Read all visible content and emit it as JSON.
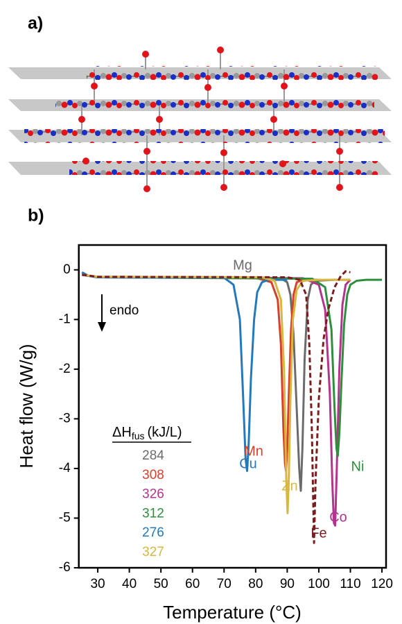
{
  "panel_a_label": "a)",
  "chart_data": {
    "type": "line",
    "panel_label": "b)",
    "xlabel": "Temperature (°C)",
    "ylabel": "Heat flow (W/g)",
    "xlim": [
      24,
      121.3
    ],
    "ylim": [
      -6,
      0.5
    ],
    "xticks": [
      30,
      40,
      50,
      60,
      70,
      80,
      90,
      100,
      110,
      120
    ],
    "yticks": [
      0,
      -1,
      -2,
      -3,
      -4,
      -5,
      -6
    ],
    "annotation": "endo",
    "table_header": {
      "symbol": "ΔH",
      "subscript": "fus",
      "unit": "(kJ/L)"
    },
    "series": [
      {
        "name": "Mg",
        "color": "#6b6b6b",
        "dashed": false,
        "delta_h_fus": 284,
        "x": [
          25,
          27,
          30,
          80,
          88,
          90,
          91,
          92,
          93,
          93.8,
          94.3,
          94.8,
          95.5,
          96.5,
          97.5,
          99,
          105,
          110
        ],
        "values": [
          -0.05,
          -0.12,
          -0.14,
          -0.15,
          -0.17,
          -0.25,
          -0.5,
          -1.3,
          -2.8,
          -4.0,
          -4.45,
          -3.6,
          -1.8,
          -0.6,
          -0.3,
          -0.22,
          -0.2,
          -0.2
        ]
      },
      {
        "name": "Mn",
        "color": "#d8402a",
        "dashed": false,
        "delta_h_fus": 308,
        "x": [
          25,
          30,
          80,
          85,
          87,
          88,
          88.8,
          89.3,
          89.6,
          90,
          90.5,
          91.2,
          92,
          93,
          95,
          100
        ],
        "values": [
          -0.1,
          -0.15,
          -0.16,
          -0.25,
          -0.6,
          -1.5,
          -3.2,
          -3.9,
          -4.05,
          -3.6,
          -2.5,
          -1.2,
          -0.5,
          -0.25,
          -0.2,
          -0.2
        ]
      },
      {
        "name": "Co",
        "color": "#b2348f",
        "dashed": false,
        "delta_h_fus": 326,
        "x": [
          25,
          30,
          95,
          100,
          102,
          103.5,
          104.3,
          104.8,
          105.2,
          105.7,
          106.5,
          107.5,
          108.5,
          110
        ],
        "values": [
          -0.1,
          -0.15,
          -0.17,
          -0.3,
          -0.8,
          -2.5,
          -4.3,
          -5.1,
          -5.15,
          -4.0,
          -2.0,
          -0.7,
          -0.3,
          -0.2
        ]
      },
      {
        "name": "Ni",
        "color": "#2f8e3c",
        "dashed": false,
        "delta_h_fus": 312,
        "x": [
          25,
          30,
          98,
          102,
          104,
          105,
          105.6,
          106,
          106.5,
          107.2,
          108,
          109,
          110,
          112,
          115,
          120
        ],
        "values": [
          -0.1,
          -0.15,
          -0.18,
          -0.35,
          -1.2,
          -2.8,
          -3.6,
          -3.75,
          -3.3,
          -2.2,
          -1.1,
          -0.5,
          -0.3,
          -0.22,
          -0.2,
          -0.2
        ]
      },
      {
        "name": "Cu",
        "color": "#2479bd",
        "dashed": false,
        "delta_h_fus": 276,
        "x": [
          25,
          27,
          30,
          70,
          73,
          75,
          76,
          76.8,
          77.3,
          77.8,
          78.5,
          79.5,
          80.5,
          82,
          84,
          90
        ],
        "values": [
          -0.05,
          -0.12,
          -0.15,
          -0.16,
          -0.3,
          -1,
          -2.5,
          -3.8,
          -4.05,
          -3.5,
          -2.2,
          -1.0,
          -0.45,
          -0.25,
          -0.2,
          -0.2
        ]
      },
      {
        "name": "Zn",
        "color": "#d6b73f",
        "dashed": false,
        "delta_h_fus": 327,
        "x": [
          25,
          30,
          82,
          86,
          88,
          89,
          89.7,
          90.1,
          90.5,
          91,
          91.8,
          93,
          95,
          100,
          110
        ],
        "values": [
          -0.1,
          -0.14,
          -0.15,
          -0.22,
          -0.6,
          -2,
          -4.2,
          -4.9,
          -4.2,
          -2.6,
          -1.0,
          -0.4,
          -0.22,
          -0.2,
          -0.2
        ]
      },
      {
        "name": "Fe",
        "color": "#7b1d1d",
        "dashed": true,
        "x": [
          25,
          30,
          90,
          94,
          96,
          97,
          97.8,
          98.5,
          99,
          100,
          101.5,
          103,
          105,
          107,
          108.5,
          110
        ],
        "values": [
          -0.1,
          -0.14,
          -0.15,
          -0.2,
          -0.5,
          -1.5,
          -3.2,
          -5.5,
          -4.2,
          -2.6,
          -1.4,
          -0.8,
          -0.35,
          -0.12,
          -0.03,
          -0.05
        ]
      }
    ]
  }
}
